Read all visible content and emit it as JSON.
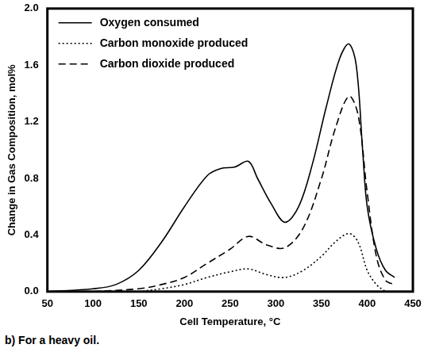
{
  "chart_data": {
    "type": "line",
    "caption": "b) For a heavy oil.",
    "x_label": "Cell Temperature, °C",
    "y_label": "Change in Gas Composition, mol%",
    "xlim": [
      50,
      450
    ],
    "xticks": [
      50,
      100,
      150,
      200,
      250,
      300,
      350,
      400,
      450
    ],
    "ylim": [
      0,
      2.0
    ],
    "yticks": [
      {
        "value": 0,
        "label": "0.0"
      },
      0.4,
      0.8,
      1.2,
      1.6,
      {
        "value": 2.0,
        "label": "2.0"
      }
    ],
    "grid": false,
    "legend": "top-left",
    "series": [
      {
        "name": "Oxygen consumed",
        "color": "#000000",
        "line_style": "solid",
        "x": [
          50,
          100,
          125,
          150,
          175,
          200,
          225,
          240,
          255,
          270,
          280,
          295,
          310,
          325,
          340,
          355,
          370,
          380,
          388,
          395,
          400,
          410,
          420,
          430
        ],
        "values": [
          0.0,
          0.02,
          0.05,
          0.15,
          0.35,
          0.6,
          0.82,
          0.87,
          0.88,
          0.92,
          0.8,
          0.62,
          0.49,
          0.6,
          0.9,
          1.3,
          1.65,
          1.75,
          1.6,
          1.0,
          0.6,
          0.3,
          0.15,
          0.1
        ]
      },
      {
        "name": "Carbon monoxide produced",
        "color": "#000000",
        "line_style": "dotted",
        "x": [
          150,
          175,
          200,
          225,
          250,
          270,
          290,
          310,
          330,
          350,
          365,
          380,
          390,
          400,
          410,
          420
        ],
        "values": [
          0.0,
          0.02,
          0.05,
          0.1,
          0.14,
          0.16,
          0.12,
          0.1,
          0.15,
          0.25,
          0.35,
          0.41,
          0.35,
          0.15,
          0.05,
          0.0
        ]
      },
      {
        "name": "Carbon dioxide produced",
        "color": "#000000",
        "line_style": "dashed",
        "x": [
          100,
          150,
          175,
          200,
          225,
          250,
          270,
          290,
          310,
          330,
          350,
          365,
          380,
          390,
          400,
          410,
          420,
          430
        ],
        "values": [
          0.0,
          0.02,
          0.05,
          0.1,
          0.2,
          0.3,
          0.39,
          0.33,
          0.31,
          0.45,
          0.8,
          1.15,
          1.38,
          1.25,
          0.7,
          0.25,
          0.08,
          0.05
        ]
      }
    ]
  }
}
